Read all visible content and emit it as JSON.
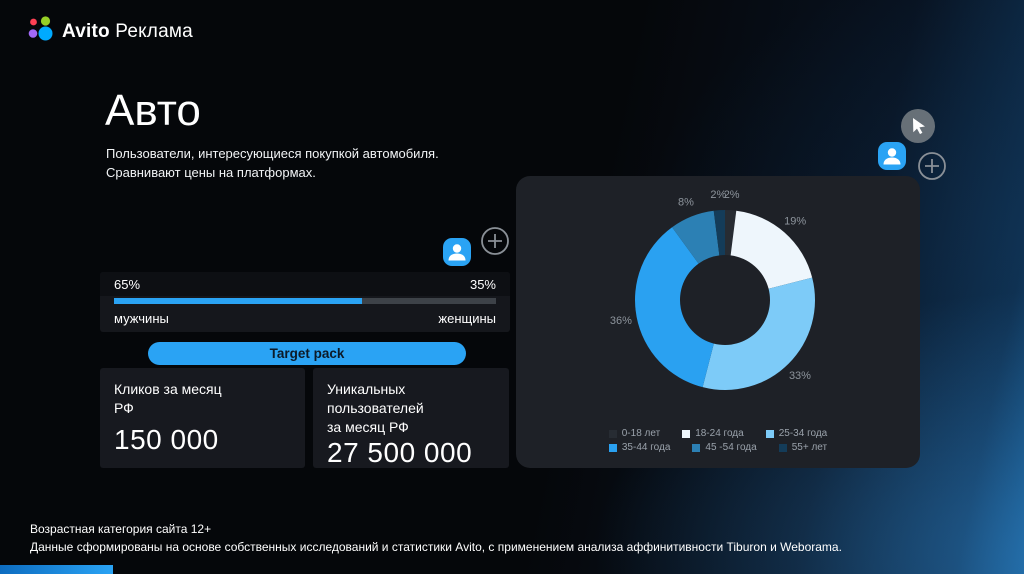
{
  "brand": {
    "name": "Avito",
    "product": "Реклама"
  },
  "page": {
    "title": "Авто",
    "description_line1": "Пользователи, интересующиеся покупкой автомобиля.",
    "description_line2": "Сравнивают цены на платформах."
  },
  "gender_split": {
    "left_percent": "65%",
    "right_percent": "35%",
    "left_label": "мужчины",
    "right_label": "женщины",
    "left_value": 65
  },
  "target_pack_label": "Target pack",
  "stats": [
    {
      "label_lines": [
        "Кликов за месяц",
        "РФ"
      ],
      "value": "150 000"
    },
    {
      "label_lines": [
        "Уникальных",
        "пользователей",
        "за месяц РФ"
      ],
      "value": "27 500 000"
    }
  ],
  "chart_data": {
    "type": "pie",
    "donut": true,
    "categories": [
      "0-18 лет",
      "18-24 года",
      "25-34 года",
      "35-44 года",
      "45 -54 года",
      "55+ лет"
    ],
    "values": [
      2,
      19,
      33,
      36,
      8,
      2
    ],
    "colors": [
      "#272c33",
      "#eef6fc",
      "#7dcbf8",
      "#2aa1f1",
      "#2c80b4",
      "#143c59"
    ],
    "title": "",
    "legend_position": "bottom"
  },
  "icons": {
    "person": "person-icon",
    "add": "plus-circle-icon",
    "cursor": "cursor-pointer-icon",
    "logo": "avito-dots-logo"
  },
  "colors": {
    "accent": "#2aa3f4",
    "card_bg": "#15171c",
    "panel_bg": "#1e2127",
    "bar_track": "#3d4248"
  },
  "footer": {
    "line1": "Возрастная категория сайта 12+",
    "line2": "Данные сформированы на основе собственных исследований и статистики Avito, с применением анализа аффинитивности Tiburon и Weborama."
  }
}
